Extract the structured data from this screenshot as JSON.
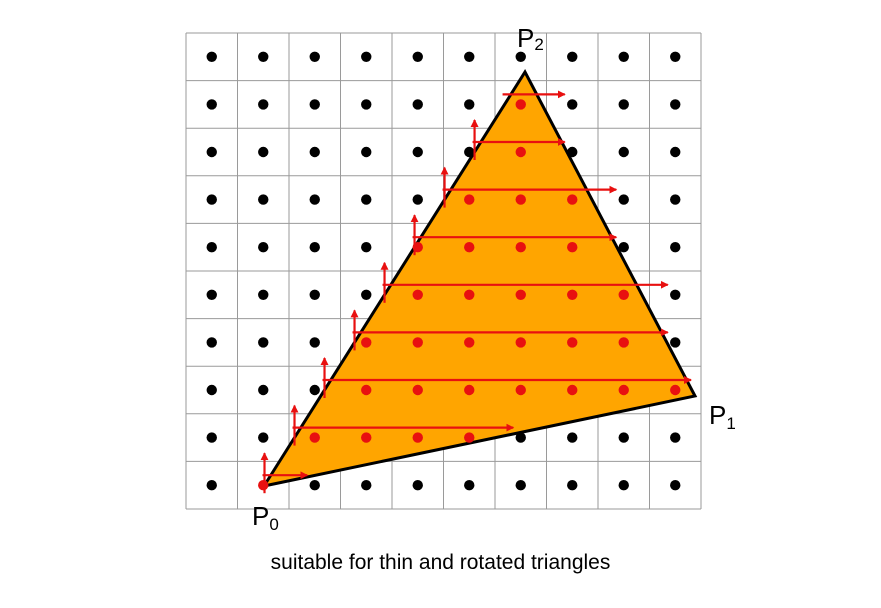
{
  "diagram": {
    "grid": {
      "columns": 10,
      "rows": 10
    },
    "colors": {
      "grid_line": "#9a9a9a",
      "pixel_center": "#000000",
      "covered_sample": "#e81010",
      "traversal_arrow": "#e81010",
      "triangle_fill": "#ffa500",
      "triangle_stroke": "#000000"
    },
    "vertices": [
      {
        "name": "p0",
        "label": "P",
        "subscript": "0"
      },
      {
        "name": "p1",
        "label": "P",
        "subscript": "1"
      },
      {
        "name": "p2",
        "label": "P",
        "subscript": "2"
      }
    ],
    "caption": "suitable for thin and rotated triangles"
  }
}
